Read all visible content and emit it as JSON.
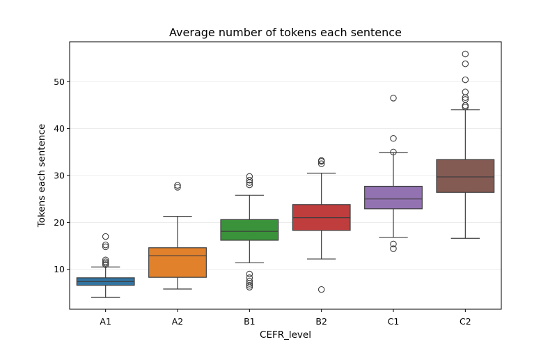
{
  "chart_data": {
    "type": "box",
    "title": "Average number of tokens each sentence",
    "xlabel": "CEFR_level",
    "ylabel": "Tokens each sentence",
    "ylim": [
      1.5,
      58.5
    ],
    "yticks": [
      10,
      20,
      30,
      40,
      50
    ],
    "grid": "horizontal",
    "categories": [
      "A1",
      "A2",
      "B1",
      "B2",
      "C1",
      "C2"
    ],
    "colors": [
      "#3274a1",
      "#e1812c",
      "#3a923a",
      "#c03d3e",
      "#9372b2",
      "#845b53"
    ],
    "boxes": [
      {
        "category": "A1",
        "whisker_low": 4.0,
        "q1": 6.6,
        "median": 7.4,
        "q3": 8.2,
        "whisker_high": 10.5,
        "outliers": [
          11.0,
          11.3,
          11.6,
          12.0,
          14.8,
          15.2,
          17.0
        ]
      },
      {
        "category": "A2",
        "whisker_low": 5.8,
        "q1": 8.3,
        "median": 12.9,
        "q3": 14.6,
        "whisker_high": 21.3,
        "outliers": [
          27.5,
          27.9
        ]
      },
      {
        "category": "B1",
        "whisker_low": 11.4,
        "q1": 16.2,
        "median": 18.1,
        "q3": 20.6,
        "whisker_high": 25.8,
        "outliers": [
          6.2,
          6.6,
          7.0,
          7.5,
          8.2,
          9.0,
          28.0,
          28.5,
          29.0,
          29.8
        ]
      },
      {
        "category": "B2",
        "whisker_low": 12.2,
        "q1": 18.3,
        "median": 21.0,
        "q3": 23.8,
        "whisker_high": 30.5,
        "outliers": [
          5.7,
          32.5,
          33.0,
          33.2
        ]
      },
      {
        "category": "C1",
        "whisker_low": 16.8,
        "q1": 22.9,
        "median": 25.0,
        "q3": 27.7,
        "whisker_high": 34.9,
        "outliers": [
          14.4,
          15.4,
          35.0,
          37.9,
          46.5
        ]
      },
      {
        "category": "C2",
        "whisker_low": 16.6,
        "q1": 26.4,
        "median": 29.7,
        "q3": 33.4,
        "whisker_high": 44.0,
        "outliers": [
          44.6,
          44.9,
          46.2,
          46.6,
          47.8,
          50.4,
          53.8,
          55.9
        ]
      }
    ]
  }
}
